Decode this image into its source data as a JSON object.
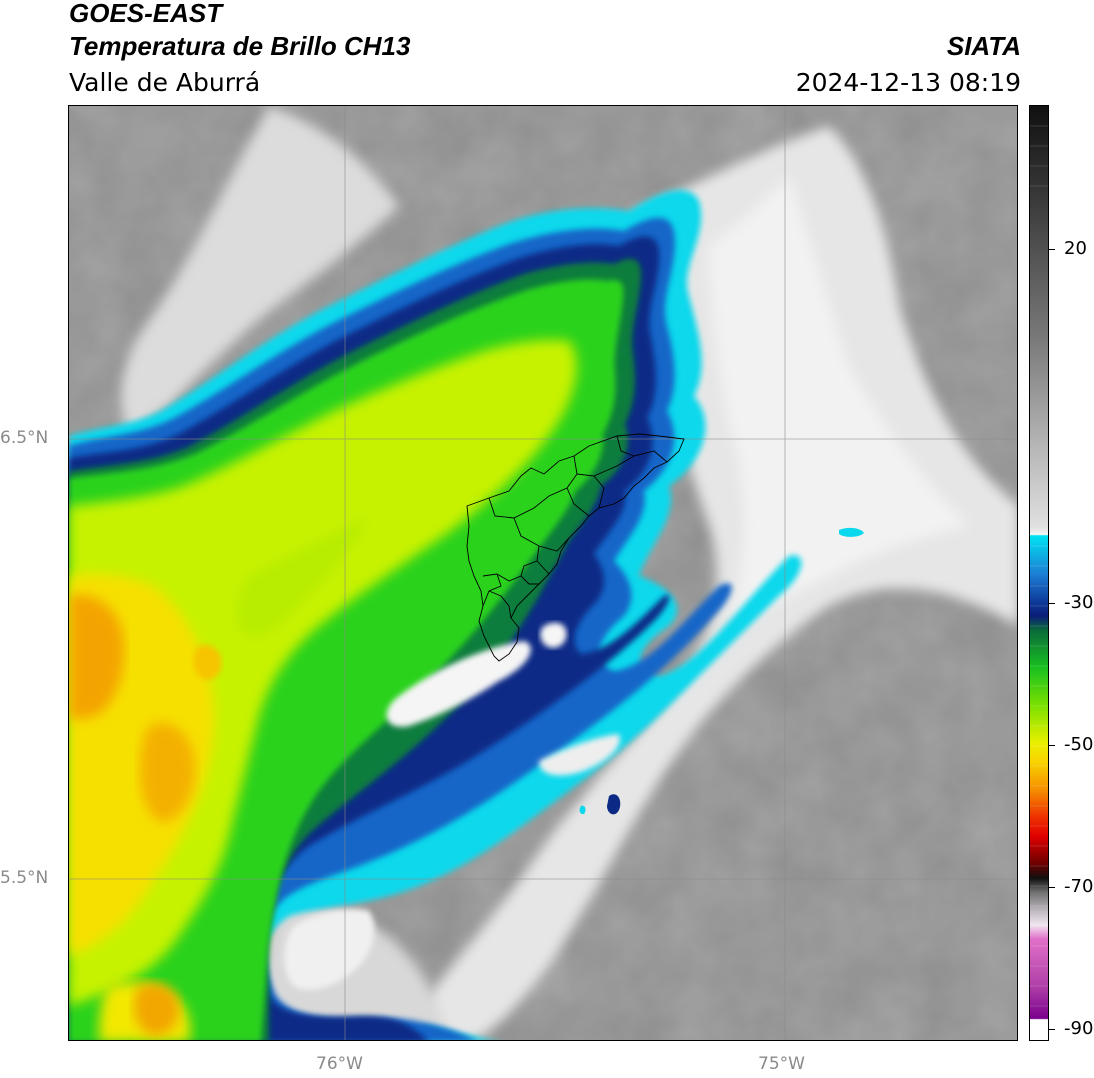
{
  "header": {
    "satellite": "GOES-EAST",
    "product": "Temperatura de Brillo CH13",
    "agency": "SIATA",
    "region": "Valle de Aburrá",
    "datetime": "2024-12-13 08:19"
  },
  "map": {
    "lat_labels": [
      "6.5°N",
      "5.5°N"
    ],
    "lon_labels": [
      "76°W",
      "75°W"
    ],
    "grid": true
  },
  "colorbar": {
    "labels": [
      "20",
      "-30",
      "-50",
      "-70",
      "-90"
    ],
    "colors": {
      "warm_dark": "#1a1a1a",
      "gray_mid": "#8c8c8c",
      "gray_light": "#efefef",
      "cyan": "#00e5f0",
      "blue": "#1060c0",
      "navy": "#0a1e78",
      "dark_green": "#0a7a3a",
      "green": "#28d21e",
      "yellow_green": "#c8f000",
      "yellow": "#f5e600",
      "orange": "#f5a000",
      "red": "#e00000",
      "dark_red": "#400000",
      "pink": "#e070c8",
      "purple": "#7a008c"
    }
  }
}
